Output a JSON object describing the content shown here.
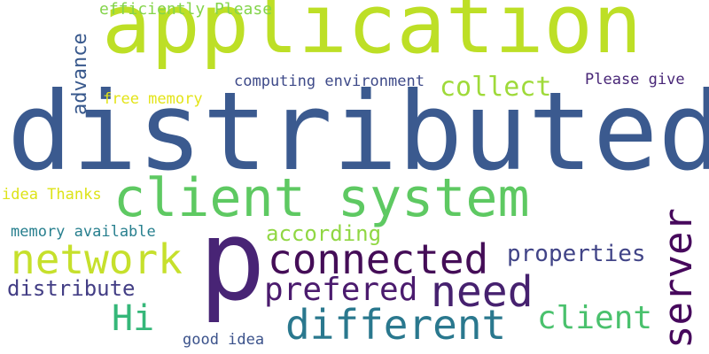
{
  "words": {
    "application": {
      "text": "application",
      "color": "#bddf26"
    },
    "distributed": {
      "text": "distributed",
      "color": "#3b5a8f"
    },
    "client_system": {
      "text": "client system",
      "color": "#5ec962"
    },
    "p": {
      "text": "p",
      "color": "#482475"
    },
    "network": {
      "text": "network",
      "color": "#c6e02c"
    },
    "connected": {
      "text": "connected",
      "color": "#440d57"
    },
    "need": {
      "text": "need",
      "color": "#46216f"
    },
    "prefered": {
      "text": "prefered",
      "color": "#4b1b6e"
    },
    "different": {
      "text": "different",
      "color": "#2a788e"
    },
    "server": {
      "text": "server",
      "color": "#46085c"
    },
    "client": {
      "text": "client",
      "color": "#4ac16d"
    },
    "hi": {
      "text": "Hi",
      "color": "#35b779"
    },
    "collect": {
      "text": "collect",
      "color": "#9fda3a"
    },
    "according": {
      "text": "according",
      "color": "#90d743"
    },
    "properties": {
      "text": "properties",
      "color": "#414487"
    },
    "distribute": {
      "text": "distribute",
      "color": "#433e85"
    },
    "advance": {
      "text": "advance",
      "color": "#38588c"
    },
    "efficiently_please": {
      "text": "efficiently Please",
      "color": "#84d44b"
    },
    "computing_environment": {
      "text": "computing environment",
      "color": "#3e4a89"
    },
    "please_give": {
      "text": "Please give",
      "color": "#482677"
    },
    "free_memory": {
      "text": "free memory",
      "color": "#e3e418"
    },
    "idea_thanks": {
      "text": "idea Thanks",
      "color": "#dde318"
    },
    "memory_available": {
      "text": "memory available",
      "color": "#277f8e"
    },
    "good_idea": {
      "text": "good idea",
      "color": "#3b528b"
    }
  }
}
